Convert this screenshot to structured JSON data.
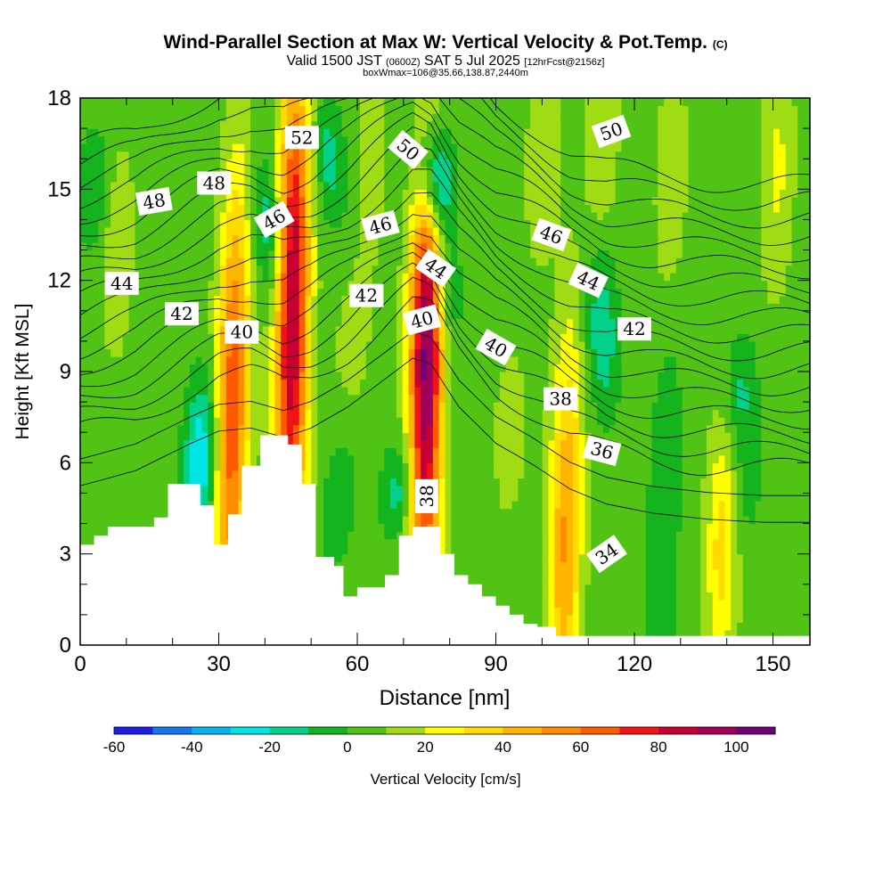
{
  "chart_data": {
    "type": "heatmap",
    "title": "Wind-Parallel Section at Max W: Vertical Velocity & Pot.Temp.",
    "title_mark": "(C)",
    "subtitle_main": "Valid 1500 JST",
    "subtitle_utc": "(0600Z)",
    "subtitle_date": "SAT 5 Jul 2025",
    "subtitle_forecast": "[12hrFcst@2156z]",
    "subtitle2": "boxWmax=106@35.66,138.87,2440m",
    "xlabel": "Distance [nm]",
    "ylabel": "Height [Kft MSL]",
    "xlim": [
      0,
      158
    ],
    "ylim": [
      0,
      18
    ],
    "x_ticks": [
      0,
      30,
      60,
      90,
      120,
      150
    ],
    "y_ticks": [
      0,
      3,
      6,
      9,
      12,
      15,
      18
    ],
    "colorbar": {
      "label": "Vertical Velocity [cm/s]",
      "levels": [
        -60,
        -50,
        -40,
        -30,
        -20,
        -10,
        0,
        10,
        20,
        30,
        40,
        50,
        60,
        70,
        80,
        90,
        100,
        110
      ],
      "tick_labels": [
        -60,
        -40,
        -20,
        0,
        20,
        40,
        60,
        80,
        100
      ],
      "colors": [
        "#1e1ee6",
        "#1478f0",
        "#00b4f0",
        "#00e6e6",
        "#00d28c",
        "#14b41e",
        "#50c314",
        "#a0dc14",
        "#ffff00",
        "#ffdc00",
        "#ffb400",
        "#ff8c00",
        "#ff5a00",
        "#f01414",
        "#c80032",
        "#a0005a",
        "#6e0078"
      ]
    },
    "terrain": [
      [
        0,
        3.3
      ],
      [
        3,
        3.3
      ],
      [
        3,
        3.6
      ],
      [
        6,
        3.6
      ],
      [
        6,
        3.9
      ],
      [
        16,
        3.9
      ],
      [
        16,
        4.2
      ],
      [
        19,
        4.2
      ],
      [
        19,
        5.3
      ],
      [
        26,
        5.3
      ],
      [
        26,
        4.6
      ],
      [
        29,
        4.6
      ],
      [
        29,
        3.3
      ],
      [
        32,
        3.3
      ],
      [
        32,
        4.3
      ],
      [
        35,
        4.3
      ],
      [
        35,
        5.9
      ],
      [
        39,
        5.9
      ],
      [
        39,
        6.9
      ],
      [
        45,
        6.9
      ],
      [
        45,
        6.6
      ],
      [
        48,
        6.6
      ],
      [
        48,
        5.3
      ],
      [
        51,
        5.3
      ],
      [
        51,
        2.9
      ],
      [
        55,
        2.9
      ],
      [
        55,
        2.6
      ],
      [
        57,
        2.6
      ],
      [
        57,
        1.6
      ],
      [
        60,
        1.6
      ],
      [
        60,
        1.9
      ],
      [
        66,
        1.9
      ],
      [
        66,
        2.3
      ],
      [
        69,
        2.3
      ],
      [
        69,
        3.6
      ],
      [
        72,
        3.6
      ],
      [
        72,
        3.9
      ],
      [
        78,
        3.9
      ],
      [
        78,
        3.0
      ],
      [
        81,
        3.0
      ],
      [
        81,
        2.3
      ],
      [
        84,
        2.3
      ],
      [
        84,
        2.0
      ],
      [
        87,
        2.0
      ],
      [
        87,
        1.6
      ],
      [
        90,
        1.6
      ],
      [
        90,
        1.3
      ],
      [
        93,
        1.3
      ],
      [
        93,
        1.0
      ],
      [
        96,
        1.0
      ],
      [
        96,
        0.7
      ],
      [
        99,
        0.7
      ],
      [
        99,
        0.6
      ],
      [
        103,
        0.6
      ],
      [
        103,
        0.3
      ],
      [
        158,
        0.3
      ]
    ],
    "w_features": [
      {
        "x": 33,
        "y": 6.6,
        "w": 90,
        "h": 11,
        "v": 44
      },
      {
        "x": 33,
        "y": 10.0,
        "w": 60,
        "h": 10,
        "v": 22
      },
      {
        "x": 26,
        "y": 6.0,
        "w": 45,
        "h": 4,
        "v": -35
      },
      {
        "x": 46,
        "y": 10.2,
        "w": 90,
        "h": 12,
        "v": 82
      },
      {
        "x": 45,
        "y": 14.6,
        "w": 40,
        "h": 7,
        "v": 15
      },
      {
        "x": 41,
        "y": 13.7,
        "w": -40,
        "h": 3.5,
        "v": -25
      },
      {
        "x": 54,
        "y": 16.0,
        "w": -20,
        "h": 3,
        "v": -20
      },
      {
        "x": 75,
        "y": 8.4,
        "w": 90,
        "h": 11,
        "v": 88
      },
      {
        "x": 74,
        "y": 11.8,
        "w": 50,
        "h": 6,
        "v": 20
      },
      {
        "x": 77,
        "y": 15.2,
        "w": -60,
        "h": 3,
        "v": -55
      },
      {
        "x": 79,
        "y": 11.6,
        "w": -40,
        "h": 2.5,
        "v": -18
      },
      {
        "x": 69,
        "y": 5.1,
        "w": 30,
        "h": 2.3,
        "v": -22
      },
      {
        "x": 56,
        "y": 4.6,
        "w": 18,
        "h": 3,
        "v": -14
      },
      {
        "x": 105,
        "y": 3.6,
        "w": 80,
        "h": 10,
        "v": 46
      },
      {
        "x": 113,
        "y": 10.4,
        "w": -50,
        "h": 4,
        "v": -24
      },
      {
        "x": 126,
        "y": 3.2,
        "w": 40,
        "h": 12,
        "v": -14
      },
      {
        "x": 139,
        "y": 3.3,
        "w": 90,
        "h": 6,
        "v": 30
      },
      {
        "x": 143,
        "y": 8.2,
        "w": 90,
        "h": 3,
        "v": -18
      },
      {
        "x": 144,
        "y": 5.0,
        "w": 40,
        "h": 3,
        "v": -10
      },
      {
        "x": 151,
        "y": 15.6,
        "w": 70,
        "h": 6,
        "v": 17
      },
      {
        "x": 113,
        "y": 16.7,
        "w": 60,
        "h": 5,
        "v": 15
      },
      {
        "x": 128,
        "y": 15.0,
        "w": 70,
        "h": 6,
        "v": 15
      },
      {
        "x": 3,
        "y": 15.0,
        "w": 90,
        "h": 3,
        "v": -16
      },
      {
        "x": 8,
        "y": 13.0,
        "w": 70,
        "h": 5,
        "v": 15
      },
      {
        "x": 100,
        "y": 16.0,
        "w": 60,
        "h": 5,
        "v": 14
      },
      {
        "x": 63,
        "y": 15.6,
        "w": 60,
        "h": 5,
        "v": 12
      },
      {
        "x": 59,
        "y": 10.0,
        "w": 50,
        "h": 3,
        "v": 12
      },
      {
        "x": 93,
        "y": 7.0,
        "w": 60,
        "h": 4,
        "v": 12
      }
    ],
    "theta_base": [
      {
        "x": 0,
        "y": 7.0
      },
      {
        "x": 12,
        "y": 7.5
      },
      {
        "x": 24,
        "y": 8.4
      },
      {
        "x": 30,
        "y": 8.8
      },
      {
        "x": 37,
        "y": 8.9
      },
      {
        "x": 44,
        "y": 8.6
      },
      {
        "x": 50,
        "y": 8.9
      },
      {
        "x": 58,
        "y": 9.6
      },
      {
        "x": 65,
        "y": 10.4
      },
      {
        "x": 72,
        "y": 11.2
      },
      {
        "x": 76,
        "y": 11.0
      },
      {
        "x": 82,
        "y": 9.6
      },
      {
        "x": 90,
        "y": 8.4
      },
      {
        "x": 98,
        "y": 7.7
      },
      {
        "x": 106,
        "y": 6.9
      },
      {
        "x": 114,
        "y": 6.4
      },
      {
        "x": 124,
        "y": 6.1
      },
      {
        "x": 136,
        "y": 5.9
      },
      {
        "x": 148,
        "y": 5.8
      },
      {
        "x": 158,
        "y": 5.8
      }
    ],
    "theta_levels": [
      36,
      37,
      38,
      39,
      40,
      41,
      42,
      43,
      44,
      45,
      46,
      47,
      48,
      49,
      50,
      51,
      52,
      53,
      54,
      55
    ],
    "contour_labels": [
      {
        "text": "52",
        "x": 48,
        "y": 16.7,
        "rotate": 0
      },
      {
        "text": "50",
        "x": 71,
        "y": 16.3,
        "rotate": 40
      },
      {
        "text": "50",
        "x": 115,
        "y": 16.9,
        "rotate": -20
      },
      {
        "text": "48",
        "x": 16,
        "y": 14.6,
        "rotate": -10
      },
      {
        "text": "48",
        "x": 29,
        "y": 15.2,
        "rotate": 0
      },
      {
        "text": "46",
        "x": 42,
        "y": 14.0,
        "rotate": -30
      },
      {
        "text": "46",
        "x": 65,
        "y": 13.8,
        "rotate": -15
      },
      {
        "text": "46",
        "x": 102,
        "y": 13.5,
        "rotate": 20
      },
      {
        "text": "44",
        "x": 9,
        "y": 11.9,
        "rotate": 0
      },
      {
        "text": "44",
        "x": 77,
        "y": 12.4,
        "rotate": 35
      },
      {
        "text": "44",
        "x": 110,
        "y": 12.0,
        "rotate": 25
      },
      {
        "text": "42",
        "x": 22,
        "y": 10.9,
        "rotate": 0
      },
      {
        "text": "42",
        "x": 62,
        "y": 11.5,
        "rotate": 0
      },
      {
        "text": "42",
        "x": 120,
        "y": 10.4,
        "rotate": 0
      },
      {
        "text": "40",
        "x": 35,
        "y": 10.3,
        "rotate": 0
      },
      {
        "text": "40",
        "x": 74,
        "y": 10.7,
        "rotate": -15
      },
      {
        "text": "40",
        "x": 90,
        "y": 9.8,
        "rotate": 30
      },
      {
        "text": "38",
        "x": 104,
        "y": 8.1,
        "rotate": 0
      },
      {
        "text": "38",
        "x": 75,
        "y": 4.9,
        "rotate": -90
      },
      {
        "text": "36",
        "x": 113,
        "y": 6.4,
        "rotate": 15
      },
      {
        "text": "34",
        "x": 114,
        "y": 3.0,
        "rotate": -35
      }
    ]
  }
}
